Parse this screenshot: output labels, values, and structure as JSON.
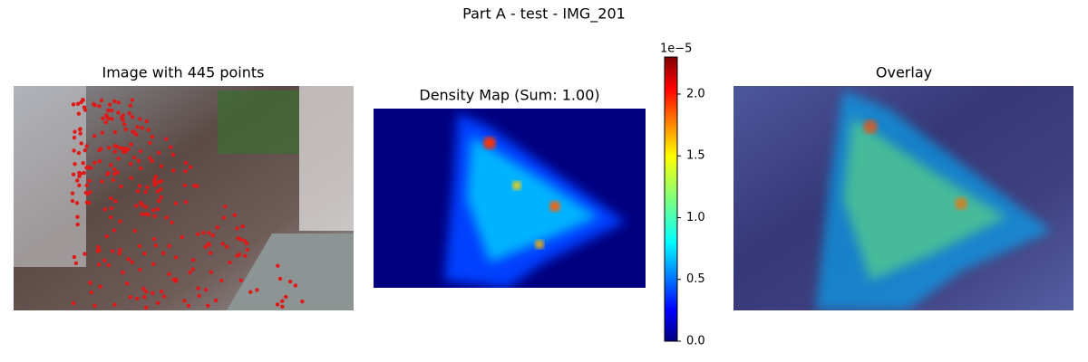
{
  "figure": {
    "title": "Part A - test - IMG_201"
  },
  "panels": [
    {
      "title": "Image with 445 points"
    },
    {
      "title": "Density Map (Sum: 1.00)"
    },
    {
      "title": "Overlay"
    }
  ],
  "colorbar": {
    "offset_label": "1e−5",
    "lim": [
      0,
      2.3
    ],
    "ticks": [
      {
        "value": 0,
        "label": "0.0"
      },
      {
        "value": 0.5,
        "label": "0.5"
      },
      {
        "value": 1,
        "label": "1.0"
      },
      {
        "value": 1.5,
        "label": "1.5"
      },
      {
        "value": 2,
        "label": "2.0"
      }
    ]
  }
}
